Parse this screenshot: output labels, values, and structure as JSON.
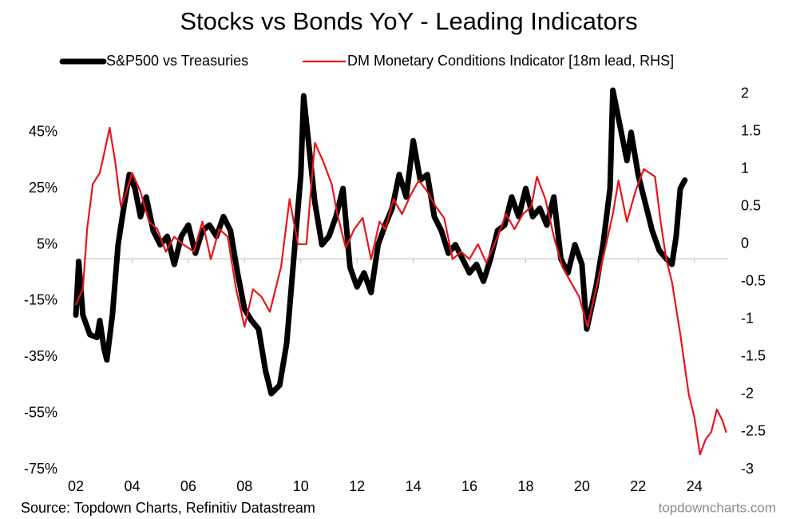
{
  "chart_data": {
    "type": "line",
    "title": "Stocks vs Bonds YoY - Leading Indicators",
    "source": "Source: Topdown Charts, Refinitiv Datastream",
    "watermark": "topdowncharts.com",
    "legend": "top",
    "xlim": [
      1.8,
      25.2
    ],
    "xticks": [
      {
        "value": 2,
        "label": "02"
      },
      {
        "value": 4,
        "label": "04"
      },
      {
        "value": 6,
        "label": "06"
      },
      {
        "value": 8,
        "label": "08"
      },
      {
        "value": 10,
        "label": "10"
      },
      {
        "value": 12,
        "label": "12"
      },
      {
        "value": 14,
        "label": "14"
      },
      {
        "value": 16,
        "label": "16"
      },
      {
        "value": 18,
        "label": "18"
      },
      {
        "value": 20,
        "label": "20"
      },
      {
        "value": 22,
        "label": "22"
      },
      {
        "value": 24,
        "label": "24"
      }
    ],
    "ylim": [
      -75,
      60
    ],
    "yticks": [
      {
        "value": 45,
        "label": "45%"
      },
      {
        "value": 25,
        "label": "25%"
      },
      {
        "value": 5,
        "label": "5%"
      },
      {
        "value": -15,
        "label": "-15%"
      },
      {
        "value": -35,
        "label": "-35%"
      },
      {
        "value": -55,
        "label": "-55%"
      },
      {
        "value": -75,
        "label": "-75%"
      }
    ],
    "y2lim": [
      -3,
      2.05
    ],
    "y2ticks": [
      2,
      1.5,
      1,
      0.5,
      0,
      -0.5,
      -1,
      -1.5,
      -2,
      -2.5,
      -3
    ],
    "series": [
      {
        "name": "S&P500 vs Treasuries",
        "color": "#000000",
        "x": [
          2.0,
          2.1,
          2.25,
          2.5,
          2.75,
          2.85,
          3.0,
          3.1,
          3.3,
          3.5,
          3.7,
          3.9,
          4.1,
          4.3,
          4.5,
          4.75,
          5.0,
          5.25,
          5.5,
          5.75,
          6.0,
          6.25,
          6.5,
          6.75,
          7.0,
          7.25,
          7.5,
          7.75,
          8.0,
          8.25,
          8.5,
          8.75,
          8.95,
          9.25,
          9.5,
          9.75,
          10.0,
          10.1,
          10.5,
          10.75,
          11.0,
          11.25,
          11.5,
          11.75,
          12.0,
          12.25,
          12.5,
          12.75,
          13.0,
          13.25,
          13.5,
          13.75,
          14.0,
          14.25,
          14.5,
          14.75,
          15.0,
          15.25,
          15.5,
          15.75,
          16.0,
          16.25,
          16.5,
          16.75,
          17.0,
          17.25,
          17.5,
          17.75,
          18.0,
          18.25,
          18.5,
          18.75,
          19.0,
          19.25,
          19.5,
          19.75,
          20.0,
          20.17,
          20.5,
          20.75,
          21.0,
          21.1,
          21.4,
          21.6,
          21.75,
          22.0,
          22.25,
          22.5,
          22.75,
          23.0,
          23.2,
          23.35,
          23.5,
          23.66
        ],
        "values": [
          -20,
          -1,
          -20,
          -27,
          -28,
          -22,
          -32,
          -36,
          -20,
          5,
          18,
          30,
          25,
          15,
          22,
          10,
          5,
          8,
          -2,
          8,
          12,
          2,
          10,
          12,
          8,
          15,
          10,
          -5,
          -18,
          -22,
          -25,
          -40,
          -48,
          -45,
          -30,
          0,
          30,
          58,
          20,
          5,
          8,
          15,
          25,
          -3,
          -10,
          -5,
          -12,
          5,
          12,
          18,
          30,
          22,
          42,
          28,
          30,
          15,
          10,
          2,
          5,
          0,
          -5,
          -2,
          -8,
          0,
          10,
          12,
          22,
          15,
          25,
          15,
          18,
          12,
          22,
          0,
          -5,
          5,
          -2,
          -25,
          -10,
          5,
          25,
          60,
          45,
          35,
          45,
          30,
          20,
          10,
          3,
          0,
          -2,
          8,
          25,
          28
        ]
      },
      {
        "name": "DM Monetary Conditions Indicator [18m lead, RHS]",
        "color": "#e8141c",
        "axis": "y2",
        "x": [
          2.0,
          2.25,
          2.4,
          2.6,
          2.85,
          3.0,
          3.2,
          3.4,
          3.6,
          3.8,
          4.0,
          4.3,
          4.6,
          4.9,
          5.2,
          5.5,
          5.8,
          6.2,
          6.5,
          6.8,
          7.1,
          7.4,
          7.7,
          8.0,
          8.3,
          8.6,
          8.9,
          9.3,
          9.6,
          9.9,
          10.2,
          10.5,
          10.8,
          11.1,
          11.3,
          11.6,
          11.9,
          12.2,
          12.5,
          12.8,
          13.0,
          13.3,
          13.6,
          13.9,
          14.2,
          14.5,
          14.8,
          15.1,
          15.4,
          15.7,
          16.0,
          16.3,
          16.6,
          17.0,
          17.3,
          17.6,
          17.9,
          18.2,
          18.4,
          18.7,
          19.0,
          19.3,
          19.6,
          19.9,
          20.2,
          20.5,
          20.8,
          21.1,
          21.3,
          21.6,
          21.9,
          22.2,
          22.6,
          22.8,
          23.0,
          23.2,
          23.5,
          23.8,
          24.0,
          24.2,
          24.4,
          24.6,
          24.8,
          25.0,
          25.13
        ],
        "values": [
          -0.8,
          -0.6,
          0.2,
          0.8,
          0.95,
          1.2,
          1.55,
          1.1,
          0.5,
          0.7,
          0.95,
          0.7,
          0.3,
          0.2,
          -0.1,
          0.1,
          0.0,
          -0.1,
          0.3,
          -0.2,
          0.2,
          0.1,
          -0.6,
          -1.1,
          -0.6,
          -0.7,
          -0.9,
          -0.3,
          0.6,
          0.0,
          0.0,
          1.35,
          1.1,
          0.8,
          0.4,
          -0.05,
          0.2,
          0.35,
          -0.2,
          0.3,
          0.2,
          0.6,
          0.4,
          0.65,
          0.85,
          0.7,
          0.5,
          0.35,
          -0.2,
          -0.1,
          -0.2,
          0.0,
          -0.25,
          0.1,
          0.4,
          0.2,
          0.4,
          0.5,
          0.9,
          0.6,
          0.1,
          -0.3,
          -0.5,
          -0.7,
          -1.1,
          -0.6,
          -0.1,
          0.4,
          0.85,
          0.3,
          0.7,
          1.0,
          0.9,
          0.3,
          -0.2,
          -0.5,
          -1.2,
          -2.0,
          -2.3,
          -2.8,
          -2.6,
          -2.5,
          -2.2,
          -2.35,
          -2.5
        ]
      }
    ]
  }
}
